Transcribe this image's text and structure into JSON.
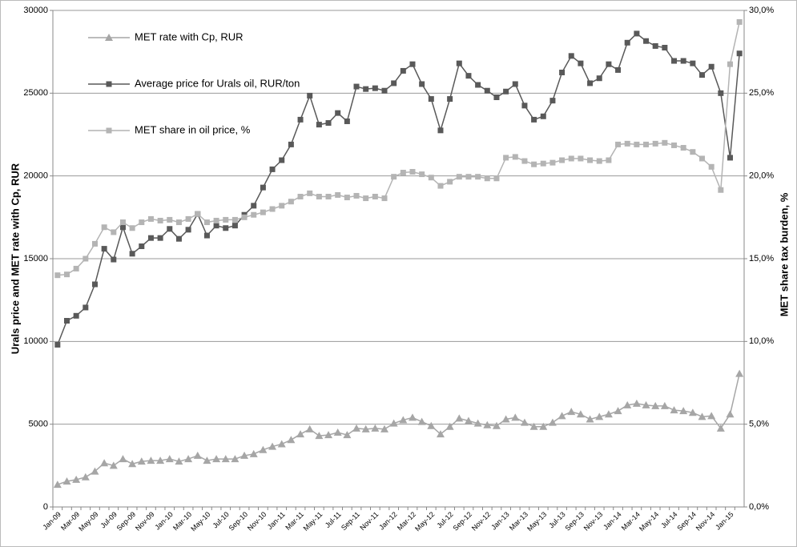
{
  "chart_data": {
    "type": "line",
    "categories": [
      "Jan-09",
      null,
      "Mar-09",
      null,
      "May-09",
      null,
      "Jul-09",
      null,
      "Sep-09",
      null,
      "Nov-09",
      null,
      "Jan-10",
      null,
      "Mar-10",
      null,
      "May-10",
      null,
      "Jul-10",
      null,
      "Sep-10",
      null,
      "Nov-10",
      null,
      "Jan-11",
      null,
      "Mar-11",
      null,
      "May-11",
      null,
      "Jul-11",
      null,
      "Sep-11",
      null,
      "Nov-11",
      null,
      "Jan-12",
      null,
      "Mar-12",
      null,
      "May-12",
      null,
      "Jul-12",
      null,
      "Sep-12",
      null,
      "Nov-12",
      null,
      "Jan-13",
      null,
      "Mar-13",
      null,
      "May-13",
      null,
      "Jul-13",
      null,
      "Sep-13",
      null,
      "Nov-13",
      null,
      "Jan-14",
      null,
      "Mar-14",
      null,
      "May-14",
      null,
      "Jul-14",
      null,
      "Sep-14",
      null,
      "Nov-14",
      null,
      "Jan-15",
      null
    ],
    "series": [
      {
        "name": "MET rate with Cp, RUR",
        "color": "#a6a6a6",
        "marker": "triangle",
        "values": [
          1350,
          1550,
          1650,
          1800,
          2150,
          2650,
          2500,
          2900,
          2600,
          2750,
          2800,
          2800,
          2900,
          2750,
          2900,
          3100,
          2800,
          2900,
          2900,
          2900,
          3100,
          3200,
          3450,
          3650,
          3800,
          4050,
          4400,
          4700,
          4300,
          4350,
          4500,
          4350,
          4750,
          4700,
          4750,
          4700,
          5050,
          5250,
          5400,
          5150,
          4900,
          4400,
          4850,
          5350,
          5200,
          5050,
          4950,
          4900,
          5300,
          5400,
          5100,
          4850,
          4850,
          5100,
          5500,
          5750,
          5600,
          5300,
          5450,
          5600,
          5800,
          6150,
          6250,
          6150,
          6100,
          6100,
          5850,
          5800,
          5700,
          5450,
          5500,
          4750,
          5600,
          8050
        ]
      },
      {
        "name": "Average price for Urals oil, RUR/ton",
        "color": "#595959",
        "marker": "square",
        "values": [
          9800,
          11250,
          11550,
          12050,
          13450,
          15600,
          14950,
          16900,
          15300,
          15750,
          16250,
          16250,
          16800,
          16200,
          16750,
          17700,
          16400,
          17000,
          16850,
          17000,
          17650,
          18200,
          19300,
          20400,
          20950,
          21900,
          23400,
          24850,
          23100,
          23200,
          23800,
          23300,
          25400,
          25250,
          25300,
          25150,
          25600,
          26350,
          26750,
          25550,
          24650,
          22750,
          24650,
          26800,
          26050,
          25500,
          25150,
          24750,
          25100,
          25550,
          24250,
          23400,
          23600,
          24550,
          26250,
          27250,
          26800,
          25600,
          25900,
          26750,
          26400,
          28050,
          28600,
          28150,
          27850,
          27750,
          26950,
          26950,
          26800,
          26100,
          26600,
          25000,
          21100,
          27400
        ]
      },
      {
        "name": "MET share in oil price, %",
        "color": "#b4b4b4",
        "marker": "square",
        "axis": "y2",
        "values": [
          14.0,
          14.05,
          14.4,
          15.0,
          15.9,
          16.9,
          16.6,
          17.2,
          16.85,
          17.2,
          17.4,
          17.3,
          17.35,
          17.2,
          17.4,
          17.7,
          17.2,
          17.3,
          17.35,
          17.35,
          17.5,
          17.65,
          17.8,
          18.0,
          18.2,
          18.45,
          18.75,
          18.95,
          18.75,
          18.75,
          18.85,
          18.7,
          18.8,
          18.65,
          18.75,
          18.65,
          19.95,
          20.2,
          20.25,
          20.1,
          19.9,
          19.4,
          19.65,
          19.95,
          19.95,
          19.95,
          19.85,
          19.85,
          21.1,
          21.15,
          20.9,
          20.7,
          20.75,
          20.8,
          20.95,
          21.05,
          21.05,
          20.95,
          20.9,
          20.95,
          21.9,
          21.95,
          21.9,
          21.9,
          21.95,
          22.0,
          21.85,
          21.7,
          21.45,
          21.05,
          20.55,
          19.15,
          26.75,
          29.3
        ]
      }
    ],
    "y_label": "Urals price and MET rate with Cp, RUR",
    "y2_label": "MET share tax burden, %",
    "ylim": [
      0,
      30000
    ],
    "yticks": [
      0,
      5000,
      10000,
      15000,
      20000,
      25000,
      30000
    ],
    "y2lim": [
      0,
      30
    ],
    "y2ticks": [
      {
        "value": 0,
        "label": "0,0%"
      },
      {
        "value": 5,
        "label": "5,0%"
      },
      {
        "value": 10,
        "label": "10,0%"
      },
      {
        "value": 15,
        "label": "15,0%"
      },
      {
        "value": 20,
        "label": "20,0%"
      },
      {
        "value": 25,
        "label": "25,0%"
      },
      {
        "value": 30,
        "label": "30,0%"
      }
    ],
    "grid": true,
    "legend": "upper left"
  }
}
